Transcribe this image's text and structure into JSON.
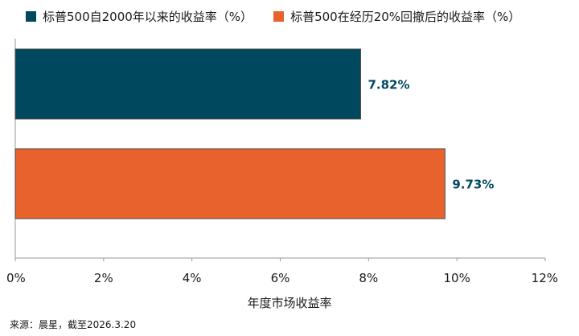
{
  "chart_data": {
    "type": "bar",
    "orientation": "horizontal",
    "series": [
      {
        "name": "标普500自2000年以来的收益率（%）",
        "value": 7.82,
        "label": "7.82%",
        "color": "#00485e"
      },
      {
        "name": "标普500在经历20%回撤后的收益率（%）",
        "value": 9.73,
        "label": "9.73%",
        "color": "#e8622e"
      }
    ],
    "xlabel": "年度市场收益率",
    "xlim": [
      0,
      12
    ],
    "xticks": [
      {
        "value": 0,
        "label": "0%"
      },
      {
        "value": 2,
        "label": "2%"
      },
      {
        "value": 4,
        "label": "4%"
      },
      {
        "value": 6,
        "label": "6%"
      },
      {
        "value": 8,
        "label": "8%"
      },
      {
        "value": 10,
        "label": "10%"
      },
      {
        "value": 12,
        "label": "12%"
      }
    ],
    "grid": false,
    "legend_position": "top-left",
    "data_label_color": "#00485e"
  },
  "source": "来源：晨星，截至2026.3.20"
}
